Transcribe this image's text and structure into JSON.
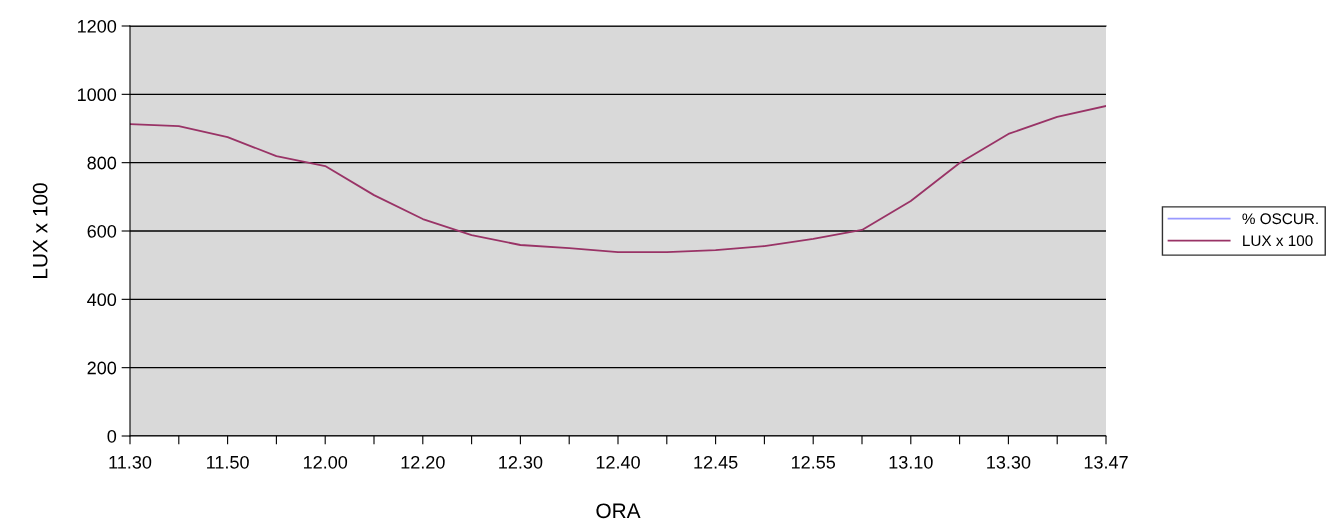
{
  "chart_data": {
    "type": "line",
    "xlabel": "ORA",
    "ylabel": "LUX x 100",
    "categories": [
      "11.30",
      null,
      "11.50",
      null,
      "12.00",
      null,
      "12.20",
      null,
      "12.30",
      null,
      "12.40",
      null,
      "12.45",
      null,
      "12.55",
      null,
      "13.10",
      null,
      "13.30",
      null,
      "13.47"
    ],
    "series": [
      {
        "name": "% OSCUR.",
        "color": "#9999ff",
        "values": [
          null,
          null,
          null,
          null,
          null,
          null,
          null,
          null,
          null,
          null,
          null,
          null,
          null,
          null,
          null,
          null,
          null,
          null,
          null,
          null,
          null
        ]
      },
      {
        "name": "LUX x 100",
        "color": "#993366",
        "values": [
          913,
          907,
          875,
          819,
          790,
          705,
          635,
          588,
          559,
          550,
          538,
          538,
          544,
          556,
          577,
          603,
          688,
          799,
          884,
          934,
          966
        ]
      }
    ],
    "ylim": [
      0,
      1200
    ],
    "yticks": [
      0,
      200,
      400,
      600,
      800,
      1000,
      1200
    ],
    "grid": "y",
    "legend": "right",
    "marker": "none",
    "line_style": "solid"
  }
}
